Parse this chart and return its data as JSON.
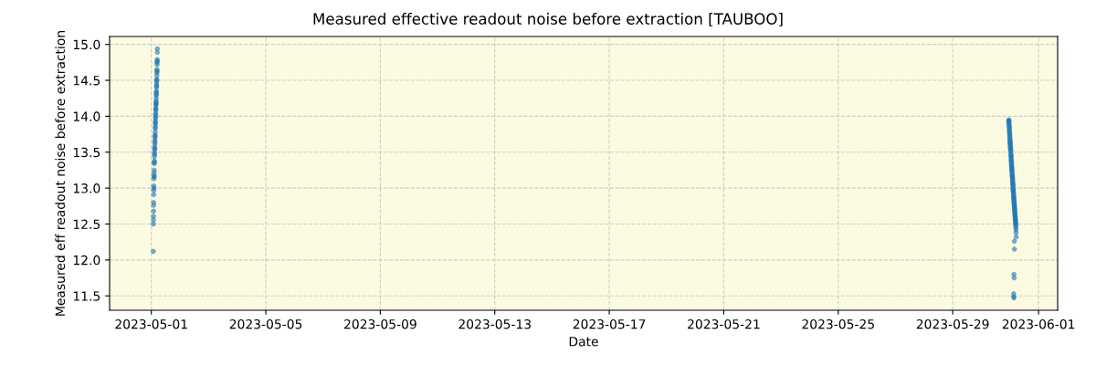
{
  "chart_data": {
    "type": "scatter",
    "title": "Measured effective readout noise before extraction [TAUBOO]",
    "xlabel": "Date",
    "ylabel": "Measured eff readout noise before extraction",
    "color": "#1f77b4",
    "marker": "circle",
    "grid": true,
    "x": [
      "2023-05-01T01:40",
      "2023-05-01T01:43",
      "2023-05-01T01:46",
      "2023-05-01T01:49",
      "2023-05-01T01:52",
      "2023-05-01T01:55",
      "2023-05-01T01:58",
      "2023-05-01T02:01",
      "2023-05-01T02:04",
      "2023-05-01T02:07",
      "2023-05-01T02:10",
      "2023-05-01T02:13",
      "2023-05-01T02:16",
      "2023-05-01T02:19",
      "2023-05-01T02:22",
      "2023-05-01T02:25",
      "2023-05-01T02:28",
      "2023-05-01T02:31",
      "2023-05-01T02:34",
      "2023-05-01T02:37",
      "2023-05-01T02:40",
      "2023-05-01T02:43",
      "2023-05-01T02:46",
      "2023-05-01T02:49",
      "2023-05-01T02:52",
      "2023-05-01T02:55",
      "2023-05-01T02:58",
      "2023-05-01T03:01",
      "2023-05-01T03:04",
      "2023-05-01T03:07",
      "2023-05-01T03:10",
      "2023-05-01T03:13",
      "2023-05-01T03:16",
      "2023-05-01T03:19",
      "2023-05-01T03:22",
      "2023-05-01T03:25",
      "2023-05-01T03:28",
      "2023-05-01T03:31",
      "2023-05-01T03:34",
      "2023-05-01T03:37",
      "2023-05-01T03:40",
      "2023-05-01T03:43",
      "2023-05-01T03:46",
      "2023-05-01T03:49",
      "2023-05-01T03:52",
      "2023-05-01T03:55",
      "2023-05-01T03:58",
      "2023-05-01T04:01",
      "2023-05-01T04:04",
      "2023-05-01T04:07",
      "2023-05-01T04:10",
      "2023-05-01T04:13",
      "2023-05-01T04:16",
      "2023-05-01T04:19",
      "2023-05-01T04:22",
      "2023-05-01T04:25",
      "2023-05-01T04:28",
      "2023-05-01T04:31",
      "2023-05-01T04:34",
      "2023-05-01T04:37",
      "2023-05-01T04:40",
      "2023-05-01T04:43",
      "2023-05-01T04:46",
      "2023-05-01T04:49",
      "2023-05-01T04:52",
      "2023-05-01T04:55",
      "2023-05-01T04:58",
      "2023-05-01T05:01",
      "2023-05-01T05:04",
      "2023-05-30T23:00",
      "2023-05-30T23:04",
      "2023-05-30T23:08",
      "2023-05-30T23:12",
      "2023-05-30T23:16",
      "2023-05-30T23:20",
      "2023-05-30T23:24",
      "2023-05-30T23:28",
      "2023-05-30T23:32",
      "2023-05-30T23:36",
      "2023-05-30T23:40",
      "2023-05-30T23:44",
      "2023-05-30T23:48",
      "2023-05-30T23:52",
      "2023-05-30T23:56",
      "2023-05-31T00:00",
      "2023-05-31T00:04",
      "2023-05-31T00:08",
      "2023-05-31T00:12",
      "2023-05-31T00:16",
      "2023-05-31T00:20",
      "2023-05-31T00:24",
      "2023-05-31T00:28",
      "2023-05-31T00:32",
      "2023-05-31T00:36",
      "2023-05-31T00:40",
      "2023-05-31T00:44",
      "2023-05-31T00:48",
      "2023-05-31T00:52",
      "2023-05-31T00:56",
      "2023-05-31T01:00",
      "2023-05-31T01:04",
      "2023-05-31T01:08",
      "2023-05-31T01:12",
      "2023-05-31T01:16",
      "2023-05-31T01:20",
      "2023-05-31T01:24",
      "2023-05-31T01:28",
      "2023-05-31T01:32",
      "2023-05-31T01:36",
      "2023-05-31T01:40",
      "2023-05-31T01:44",
      "2023-05-31T01:48",
      "2023-05-31T01:52",
      "2023-05-31T01:56",
      "2023-05-31T02:00",
      "2023-05-31T02:04",
      "2023-05-31T02:08",
      "2023-05-31T02:12",
      "2023-05-31T02:16",
      "2023-05-31T02:20",
      "2023-05-31T02:24",
      "2023-05-31T02:28",
      "2023-05-31T02:32",
      "2023-05-31T02:36",
      "2023-05-31T02:40",
      "2023-05-31T02:44",
      "2023-05-31T02:48",
      "2023-05-31T02:52",
      "2023-05-31T02:56",
      "2023-05-31T03:00",
      "2023-05-31T03:04",
      "2023-05-31T03:08",
      "2023-05-31T03:12",
      "2023-05-31T03:16",
      "2023-05-31T03:20",
      "2023-05-31T03:24",
      "2023-05-31T03:28",
      "2023-05-31T03:32",
      "2023-05-31T03:36",
      "2023-05-31T03:40",
      "2023-05-31T03:44",
      "2023-05-31T03:48",
      "2023-05-31T03:52",
      "2023-05-31T03:56",
      "2023-05-31T04:00",
      "2023-05-31T04:04",
      "2023-05-31T04:08",
      "2023-05-31T04:12",
      "2023-05-31T04:16",
      "2023-05-31T04:20",
      "2023-05-31T04:24",
      "2023-05-31T04:28",
      "2023-05-31T04:32",
      "2023-05-31T04:36",
      "2023-05-31T04:40",
      "2023-05-31T04:44",
      "2023-05-31T04:48",
      "2023-05-31T04:52",
      "2023-05-31T04:56",
      "2023-05-31T05:00",
      "2023-05-31T05:04",
      "2023-05-31T05:08",
      "2023-05-31T05:12",
      "2023-05-31T03:42",
      "2023-05-31T03:46",
      "2023-05-31T03:20",
      "2023-05-31T03:34",
      "2023-05-31T03:10",
      "2023-05-31T03:14",
      "2023-05-31T03:18"
    ],
    "values": [
      12.12,
      12.5,
      12.56,
      12.61,
      12.68,
      12.76,
      12.8,
      12.91,
      12.97,
      13.03,
      13.0,
      13.13,
      13.17,
      13.21,
      13.16,
      13.25,
      13.34,
      13.38,
      13.36,
      13.44,
      13.49,
      13.47,
      13.53,
      13.57,
      13.55,
      13.61,
      13.66,
      13.64,
      13.7,
      13.74,
      13.72,
      13.78,
      13.85,
      13.83,
      13.89,
      13.93,
      13.91,
      13.97,
      14.02,
      13.99,
      14.04,
      14.08,
      14.12,
      14.1,
      14.16,
      14.19,
      14.17,
      14.21,
      14.25,
      14.31,
      14.29,
      14.35,
      14.33,
      14.4,
      14.44,
      14.42,
      14.48,
      14.52,
      14.5,
      14.57,
      14.61,
      14.65,
      14.63,
      14.72,
      14.75,
      14.79,
      14.77,
      14.89,
      14.94,
      13.93,
      13.95,
      13.9,
      13.94,
      13.87,
      13.91,
      13.84,
      13.8,
      13.86,
      13.78,
      13.82,
      13.74,
      13.7,
      13.76,
      13.66,
      13.72,
      13.63,
      13.68,
      13.6,
      13.65,
      13.57,
      13.62,
      13.54,
      13.58,
      13.5,
      13.55,
      13.47,
      13.52,
      13.44,
      13.4,
      13.46,
      13.37,
      13.42,
      13.33,
      13.38,
      13.3,
      13.35,
      13.27,
      13.31,
      13.24,
      13.28,
      13.2,
      13.25,
      13.17,
      13.22,
      13.14,
      13.18,
      13.1,
      13.15,
      13.07,
      13.12,
      13.04,
      13.08,
      13.0,
      13.05,
      12.97,
      13.02,
      12.94,
      12.98,
      12.9,
      12.95,
      12.87,
      12.92,
      12.84,
      12.88,
      12.81,
      12.85,
      12.78,
      12.82,
      12.75,
      12.79,
      12.72,
      12.76,
      12.69,
      12.73,
      12.66,
      12.7,
      12.63,
      12.67,
      12.6,
      12.64,
      12.57,
      12.61,
      12.54,
      12.58,
      12.51,
      12.55,
      12.48,
      12.52,
      12.45,
      12.49,
      12.42,
      12.38,
      12.32,
      12.26,
      12.15,
      11.8,
      11.75,
      11.53,
      11.49,
      11.47
    ],
    "xlim": [
      "2023-04-29T13:00",
      "2023-06-01T16:00"
    ],
    "xticks": [
      "2023-05-01",
      "2023-05-05",
      "2023-05-09",
      "2023-05-13",
      "2023-05-17",
      "2023-05-21",
      "2023-05-25",
      "2023-05-29",
      "2023-06-01"
    ],
    "ylim": [
      11.3,
      15.11
    ],
    "yticks": [
      11.5,
      {
        "value": 12,
        "label": "12.0"
      },
      12.5,
      {
        "value": 13,
        "label": "13.0"
      },
      13.5,
      {
        "value": 14,
        "label": "14.0"
      },
      14.5,
      {
        "value": 15,
        "label": "15.0"
      }
    ]
  }
}
